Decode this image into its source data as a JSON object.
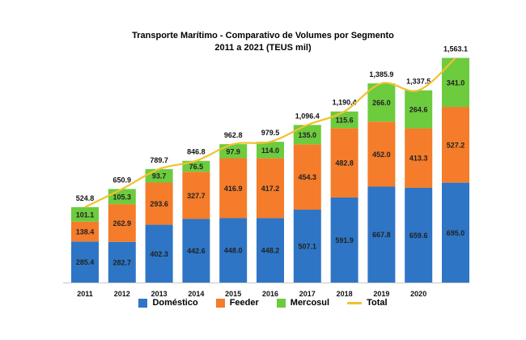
{
  "chart_data": {
    "type": "bar",
    "stacked": true,
    "title": "Transporte Marítimo - Comparativo de Volumes por Segmento",
    "subtitle": "2011 a 2021 (TEUS mil)",
    "categories": [
      "2011",
      "2012",
      "2013",
      "2014",
      "2015",
      "2016",
      "2017",
      "2018",
      "2019",
      "2020",
      ""
    ],
    "series": [
      {
        "name": "Doméstico",
        "color": "#2E75C6",
        "values": [
          285.4,
          282.7,
          402.3,
          442.6,
          448.0,
          448.2,
          507.1,
          591.9,
          667.8,
          659.6,
          695.0
        ],
        "labels": [
          "285.4",
          "282.7",
          "402.3",
          "442.6",
          "448.0",
          "448.2",
          "507.1",
          "591.9",
          "667.8",
          "659.6",
          "695.0"
        ]
      },
      {
        "name": "Feeder",
        "color": "#F47C2A",
        "values": [
          138.4,
          262.9,
          293.6,
          327.7,
          416.9,
          417.2,
          454.3,
          482.8,
          452.0,
          413.3,
          527.2
        ],
        "labels": [
          "138.4",
          "262.9",
          "293.6",
          "327.7",
          "416.9",
          "417.2",
          "454.3",
          "482.8",
          "452.0",
          "413.3",
          "527.2"
        ]
      },
      {
        "name": "Mercosul",
        "color": "#6DCB3E",
        "values": [
          101.1,
          105.3,
          93.7,
          76.5,
          97.9,
          114.0,
          135.0,
          115.6,
          266.0,
          264.6,
          341.0
        ],
        "labels": [
          "101.1",
          "105.3",
          "93.7",
          "76.5",
          "97.9",
          "114.0",
          "135.0",
          "115.6",
          "266.0",
          "264.6",
          "341.0"
        ]
      }
    ],
    "total": {
      "name": "Total",
      "color": "#F2C12E",
      "values": [
        524.8,
        650.9,
        789.7,
        846.8,
        962.8,
        979.5,
        1096.4,
        1190.4,
        1385.9,
        1337.5,
        1563.1
      ],
      "labels": [
        "524.8",
        "650.9",
        "789.7",
        "846.8",
        "962.8",
        "979.5",
        "1,096.4",
        "1,190.4",
        "1,385.9",
        "1,337.5",
        "1,563.1"
      ]
    },
    "ylim": [
      0,
      1600
    ],
    "xlabel": "",
    "ylabel": "",
    "grid": false,
    "legend_position": "bottom"
  }
}
